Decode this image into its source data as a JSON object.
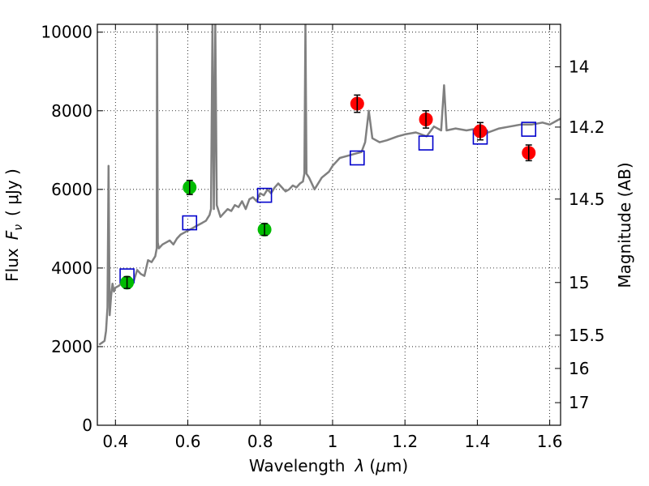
{
  "chart_data": {
    "type": "scatter",
    "xlabel": "Wavelength",
    "xlabel_symbol": "λ",
    "xlabel_unit_open": "(",
    "xlabel_unit_mu": "μ",
    "xlabel_unit_rest": "m)",
    "ylabel": "Flux",
    "ylabel_symbol": "F",
    "ylabel_sub": "ν",
    "ylabel_unit": "( μJy )",
    "y2label": "Magnitude (AB)",
    "xlim": [
      0.35,
      1.63
    ],
    "ylim": [
      0,
      10200
    ],
    "grid": true,
    "x_ticks": [
      0.4,
      0.6,
      0.8,
      1.0,
      1.2,
      1.4,
      1.6
    ],
    "x_tick_labels": [
      "0.4",
      "0.6",
      "0.8",
      "1",
      "1.2",
      "1.4",
      "1.6"
    ],
    "y_ticks": [
      0,
      2000,
      4000,
      6000,
      8000,
      10000
    ],
    "y_tick_labels": [
      "0",
      "2000",
      "4000",
      "6000",
      "8000",
      "10000"
    ],
    "y2_ticks": [
      {
        "label": "14",
        "flux": 9120
      },
      {
        "label": "14.2",
        "flux": 7585
      },
      {
        "label": "14.5",
        "flux": 5754
      },
      {
        "label": "15",
        "flux": 3631
      },
      {
        "label": "15.5",
        "flux": 2291
      },
      {
        "label": "16",
        "flux": 1445
      },
      {
        "label": "17",
        "flux": 575
      }
    ],
    "series": [
      {
        "name": "spectrum",
        "kind": "line",
        "color": "#808080",
        "points": [
          [
            0.355,
            2050
          ],
          [
            0.363,
            2100
          ],
          [
            0.37,
            2150
          ],
          [
            0.374,
            2400
          ],
          [
            0.378,
            3000
          ],
          [
            0.381,
            6600
          ],
          [
            0.384,
            2800
          ],
          [
            0.388,
            3300
          ],
          [
            0.392,
            3600
          ],
          [
            0.396,
            3400
          ],
          [
            0.4,
            3500
          ],
          [
            0.41,
            3550
          ],
          [
            0.42,
            3650
          ],
          [
            0.425,
            3500
          ],
          [
            0.43,
            3700
          ],
          [
            0.44,
            3750
          ],
          [
            0.45,
            3650
          ],
          [
            0.46,
            3950
          ],
          [
            0.47,
            3850
          ],
          [
            0.48,
            3800
          ],
          [
            0.49,
            4200
          ],
          [
            0.5,
            4150
          ],
          [
            0.51,
            4300
          ],
          [
            0.514,
            4500
          ],
          [
            0.515,
            10200
          ],
          [
            0.517,
            4650
          ],
          [
            0.52,
            4500
          ],
          [
            0.53,
            4600
          ],
          [
            0.54,
            4650
          ],
          [
            0.55,
            4700
          ],
          [
            0.56,
            4600
          ],
          [
            0.57,
            4750
          ],
          [
            0.58,
            4850
          ],
          [
            0.59,
            4900
          ],
          [
            0.6,
            4950
          ],
          [
            0.61,
            5000
          ],
          [
            0.62,
            5050
          ],
          [
            0.63,
            5100
          ],
          [
            0.64,
            5150
          ],
          [
            0.65,
            5200
          ],
          [
            0.66,
            5350
          ],
          [
            0.664,
            5500
          ],
          [
            0.668,
            10200
          ],
          [
            0.672,
            5500
          ],
          [
            0.676,
            10200
          ],
          [
            0.68,
            5600
          ],
          [
            0.69,
            5300
          ],
          [
            0.7,
            5400
          ],
          [
            0.71,
            5500
          ],
          [
            0.72,
            5450
          ],
          [
            0.73,
            5600
          ],
          [
            0.74,
            5550
          ],
          [
            0.75,
            5700
          ],
          [
            0.76,
            5500
          ],
          [
            0.77,
            5750
          ],
          [
            0.78,
            5800
          ],
          [
            0.79,
            5700
          ],
          [
            0.8,
            5900
          ],
          [
            0.81,
            5850
          ],
          [
            0.82,
            6000
          ],
          [
            0.83,
            5900
          ],
          [
            0.84,
            6050
          ],
          [
            0.85,
            6150
          ],
          [
            0.86,
            6050
          ],
          [
            0.87,
            5950
          ],
          [
            0.88,
            6000
          ],
          [
            0.89,
            6100
          ],
          [
            0.9,
            6050
          ],
          [
            0.91,
            6150
          ],
          [
            0.918,
            6200
          ],
          [
            0.922,
            6400
          ],
          [
            0.925,
            10200
          ],
          [
            0.928,
            6400
          ],
          [
            0.935,
            6300
          ],
          [
            0.95,
            6000
          ],
          [
            0.97,
            6300
          ],
          [
            0.99,
            6450
          ],
          [
            1.0,
            6600
          ],
          [
            1.02,
            6800
          ],
          [
            1.04,
            6850
          ],
          [
            1.06,
            6900
          ],
          [
            1.08,
            6950
          ],
          [
            1.09,
            7200
          ],
          [
            1.1,
            8000
          ],
          [
            1.11,
            7300
          ],
          [
            1.13,
            7200
          ],
          [
            1.15,
            7250
          ],
          [
            1.18,
            7350
          ],
          [
            1.2,
            7400
          ],
          [
            1.23,
            7450
          ],
          [
            1.26,
            7350
          ],
          [
            1.28,
            7600
          ],
          [
            1.3,
            7500
          ],
          [
            1.308,
            8650
          ],
          [
            1.315,
            7500
          ],
          [
            1.34,
            7550
          ],
          [
            1.37,
            7500
          ],
          [
            1.4,
            7550
          ],
          [
            1.43,
            7450
          ],
          [
            1.46,
            7550
          ],
          [
            1.49,
            7600
          ],
          [
            1.52,
            7650
          ],
          [
            1.55,
            7650
          ],
          [
            1.58,
            7700
          ],
          [
            1.6,
            7650
          ],
          [
            1.62,
            7750
          ],
          [
            1.63,
            7800
          ]
        ]
      },
      {
        "name": "model-photometry",
        "kind": "open-square",
        "color": "#0000cc",
        "points": [
          [
            0.432,
            3800
          ],
          [
            0.605,
            5150
          ],
          [
            0.812,
            5850
          ],
          [
            1.068,
            6800
          ],
          [
            1.258,
            7180
          ],
          [
            1.408,
            7330
          ],
          [
            1.542,
            7530
          ]
        ]
      },
      {
        "name": "optical-photometry",
        "kind": "filled-circle",
        "color": "#00bb00",
        "points": [
          [
            0.432,
            3630,
            150
          ],
          [
            0.605,
            6050,
            180
          ],
          [
            0.812,
            4980,
            150
          ]
        ]
      },
      {
        "name": "nir-photometry",
        "kind": "filled-circle",
        "color": "#ff0000",
        "points": [
          [
            1.068,
            8180,
            220
          ],
          [
            1.258,
            7780,
            220
          ],
          [
            1.408,
            7480,
            220
          ],
          [
            1.542,
            6930,
            200
          ]
        ]
      }
    ]
  }
}
